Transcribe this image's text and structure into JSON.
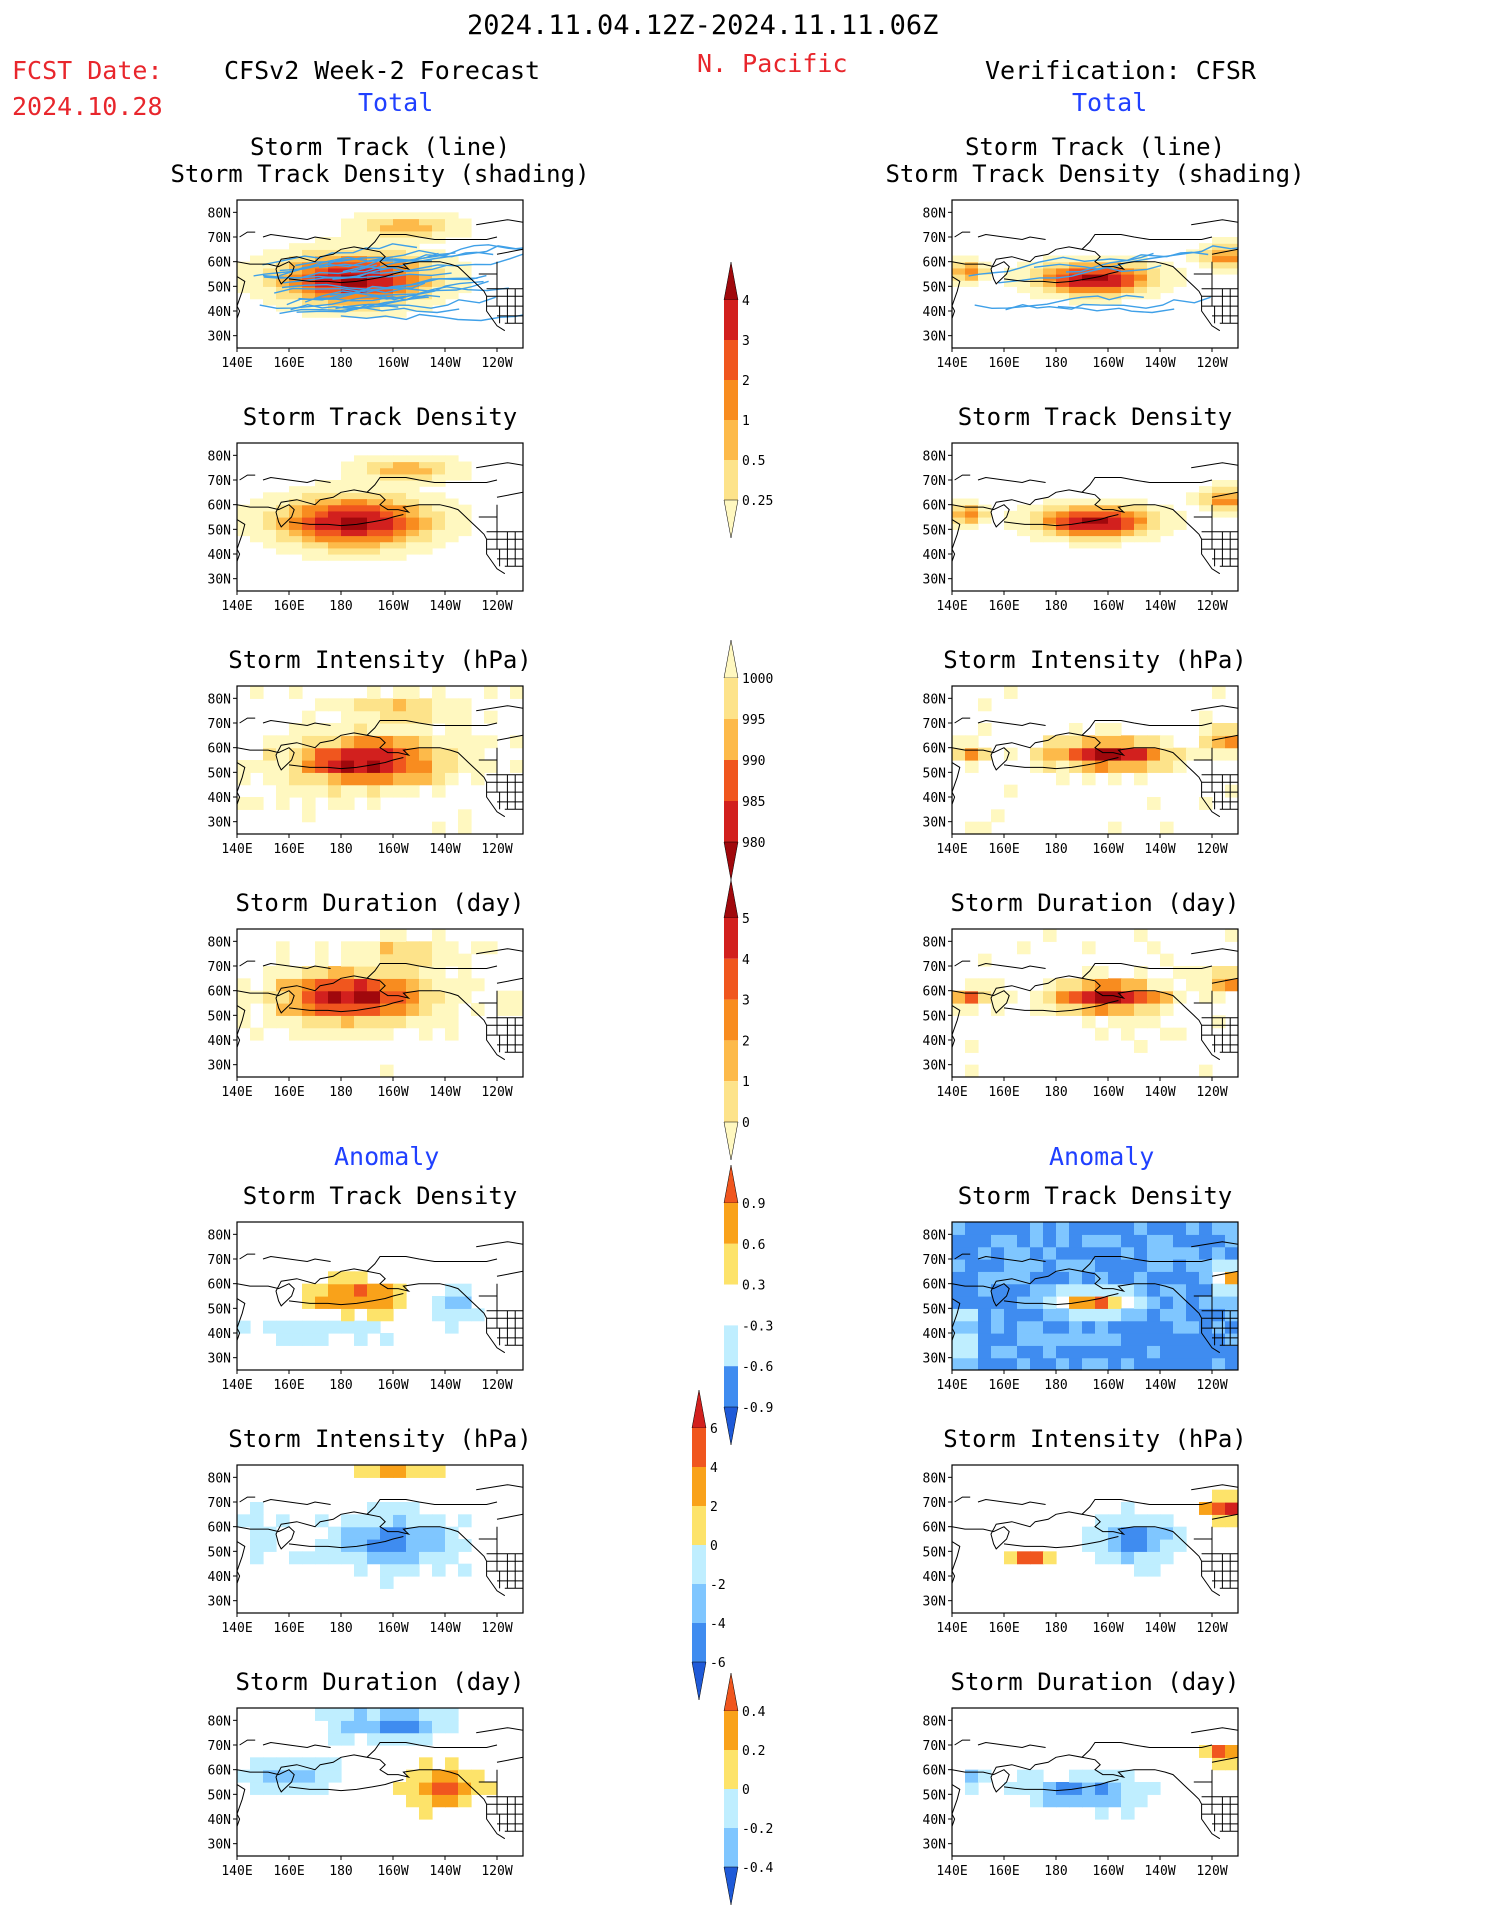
{
  "header": {
    "period": "2024.11.04.12Z-2024.11.11.06Z",
    "fcst_label": "FCST Date:",
    "fcst_date": "2024.10.28",
    "left_title": "CFSv2 Week-2 Forecast",
    "region": "N. Pacific",
    "right_title": "Verification: CFSR",
    "total": "Total",
    "anomaly": "Anomaly"
  },
  "axes": {
    "x_ticks": [
      "140E",
      "160E",
      "180",
      "160W",
      "140W",
      "120W"
    ],
    "y_ticks": [
      "80N",
      "70N",
      "60N",
      "50N",
      "40N",
      "30N"
    ]
  },
  "colors": {
    "warm": [
      "#fff8c0",
      "#fde38a",
      "#fdba4a",
      "#f88c1f",
      "#f0561e",
      "#d2201e",
      "#a0080c"
    ],
    "anom_pos": [
      "#fde36a",
      "#f9a21a",
      "#f0561e",
      "#d2201e",
      "#a0080c"
    ],
    "anom_neg": [
      "#bfeeff",
      "#7fc6ff",
      "#3f8cf0",
      "#1f5ad8"
    ],
    "track_line": "#3fa0e8"
  },
  "chart_data": [
    {
      "type": "heatmap",
      "id": "fc-track",
      "column": "forecast",
      "section": "total",
      "title_lines": [
        "Storm Track (line)",
        "Storm Track Density (shading)"
      ],
      "palette": "warm",
      "hotspot": {
        "lon": 185,
        "lat": 52,
        "peak": 6
      },
      "tracks": true
    },
    {
      "type": "heatmap",
      "id": "vf-track",
      "column": "verification",
      "section": "total",
      "title_lines": [
        "Storm Track (line)",
        "Storm Track Density (shading)"
      ],
      "palette": "warm",
      "hotspot": {
        "lon": 195,
        "lat": 52,
        "peak": 6
      },
      "tracks": true
    },
    {
      "type": "heatmap",
      "id": "fc-density",
      "column": "forecast",
      "section": "total",
      "title_lines": [
        "Storm Track Density"
      ],
      "palette": "warm",
      "hotspot": {
        "lon": 185,
        "lat": 52,
        "peak": 6
      }
    },
    {
      "type": "heatmap",
      "id": "vf-density",
      "column": "verification",
      "section": "total",
      "title_lines": [
        "Storm Track Density"
      ],
      "palette": "warm",
      "hotspot": {
        "lon": 195,
        "lat": 52,
        "peak": 6
      }
    },
    {
      "type": "heatmap",
      "id": "fc-intensity",
      "column": "forecast",
      "section": "total",
      "title_lines": [
        "Storm Intensity (hPa)"
      ],
      "palette": "warm",
      "hotspot": {
        "lon": 190,
        "lat": 52,
        "peak": 5
      }
    },
    {
      "type": "heatmap",
      "id": "vf-intensity",
      "column": "verification",
      "section": "total",
      "title_lines": [
        "Storm Intensity (hPa)"
      ],
      "palette": "warm",
      "hotspot": {
        "lon": 200,
        "lat": 55,
        "peak": 5
      }
    },
    {
      "type": "heatmap",
      "id": "fc-duration",
      "column": "forecast",
      "section": "total",
      "title_lines": [
        "Storm Duration (day)"
      ],
      "palette": "warm",
      "hotspot": {
        "lon": 185,
        "lat": 55,
        "peak": 3
      }
    },
    {
      "type": "heatmap",
      "id": "vf-duration",
      "column": "verification",
      "section": "total",
      "title_lines": [
        "Storm Duration (day)"
      ],
      "palette": "warm",
      "hotspot": {
        "lon": 200,
        "lat": 55,
        "peak": 3
      }
    },
    {
      "type": "heatmap",
      "id": "fc-anom-density",
      "column": "forecast",
      "section": "anomaly",
      "title_lines": [
        "Storm Track Density"
      ],
      "palette": "anom"
    },
    {
      "type": "heatmap",
      "id": "vf-anom-density",
      "column": "verification",
      "section": "anomaly",
      "title_lines": [
        "Storm Track Density"
      ],
      "palette": "anom"
    },
    {
      "type": "heatmap",
      "id": "fc-anom-intensity",
      "column": "forecast",
      "section": "anomaly",
      "title_lines": [
        "Storm Intensity (hPa)"
      ],
      "palette": "anom"
    },
    {
      "type": "heatmap",
      "id": "vf-anom-intensity",
      "column": "verification",
      "section": "anomaly",
      "title_lines": [
        "Storm Intensity (hPa)"
      ],
      "palette": "anom"
    },
    {
      "type": "heatmap",
      "id": "fc-anom-duration",
      "column": "forecast",
      "section": "anomaly",
      "title_lines": [
        "Storm Duration (day)"
      ],
      "palette": "anom"
    },
    {
      "type": "heatmap",
      "id": "vf-anom-duration",
      "column": "verification",
      "section": "anomaly",
      "title_lines": [
        "Storm Duration (day)"
      ],
      "palette": "anom"
    }
  ],
  "colorbars": [
    {
      "id": "cb-density",
      "labels": [
        "4",
        "3",
        "2",
        "1",
        "0.5",
        "0.25"
      ],
      "colors": [
        "#a0080c",
        "#d2201e",
        "#f0561e",
        "#f88c1f",
        "#fdba4a",
        "#fde38a",
        "#fff8c0"
      ]
    },
    {
      "id": "cb-intensity",
      "labels": [
        "1000",
        "995",
        "990",
        "985",
        "980"
      ],
      "colors": [
        "#fff8c0",
        "#fde38a",
        "#fdba4a",
        "#f0561e",
        "#d2201e",
        "#a0080c"
      ]
    },
    {
      "id": "cb-duration",
      "labels": [
        "5",
        "4",
        "3",
        "2",
        "1",
        "0"
      ],
      "colors": [
        "#a0080c",
        "#d2201e",
        "#f0561e",
        "#f88c1f",
        "#fdba4a",
        "#fde38a",
        "#fff8c0"
      ]
    },
    {
      "id": "cb-anom-density",
      "labels": [
        "0.9",
        "0.6",
        "0.3",
        "-0.3",
        "-0.6",
        "-0.9"
      ],
      "colors": [
        "#f0561e",
        "#f9a21a",
        "#fde36a",
        "#ffffff",
        "#bfeeff",
        "#3f8cf0",
        "#1f5ad8"
      ]
    },
    {
      "id": "cb-anom-intensity",
      "labels": [
        "6",
        "4",
        "2",
        "0",
        "-2",
        "-4",
        "-6"
      ],
      "colors": [
        "#d2201e",
        "#f0561e",
        "#f9a21a",
        "#fde36a",
        "#bfeeff",
        "#7fc6ff",
        "#3f8cf0",
        "#1f5ad8"
      ]
    },
    {
      "id": "cb-anom-duration",
      "labels": [
        "0.4",
        "0.2",
        "0",
        "-0.2",
        "-0.4"
      ],
      "colors": [
        "#f0561e",
        "#f9a21a",
        "#fde36a",
        "#bfeeff",
        "#7fc6ff",
        "#1f5ad8"
      ]
    }
  ]
}
